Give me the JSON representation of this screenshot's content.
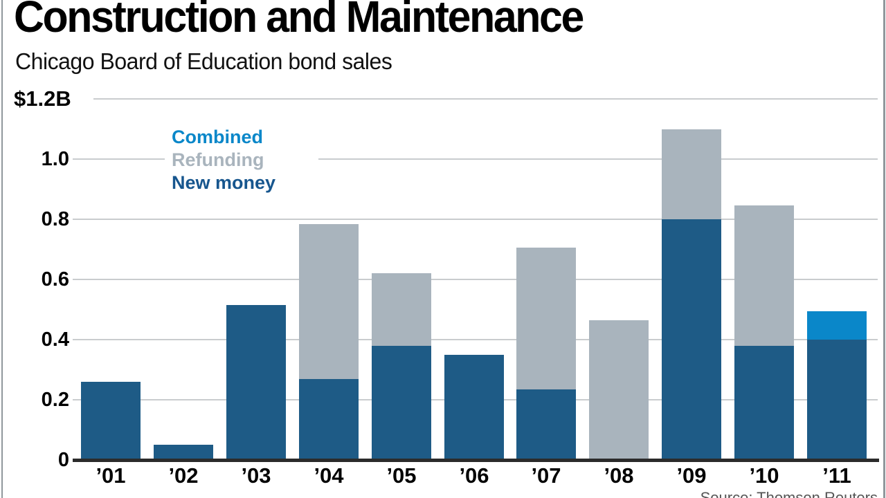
{
  "header": {
    "title": "Construction and Maintenance",
    "subtitle": "Chicago Board of Education bond sales"
  },
  "source": "Source: Thomson Reuters",
  "colors": {
    "combined": "#0a87c9",
    "refunding": "#a9b4bd",
    "new_money": "#1e5b86",
    "legend_new_money_text": "#17568e",
    "gridline": "#c9ccce",
    "baseline": "#2b2b2b"
  },
  "legend": [
    {
      "label": "Combined",
      "color": "#0a87c9"
    },
    {
      "label": "Refunding",
      "color": "#a9b4bd"
    },
    {
      "label": "New money",
      "color": "#17568e"
    }
  ],
  "chart_data": {
    "type": "bar",
    "stacked": true,
    "title": "Construction and Maintenance",
    "subtitle": "Chicago Board of Education bond sales",
    "unit": "billions of dollars",
    "categories": [
      "’01",
      "’02",
      "’03",
      "’04",
      "’05",
      "’06",
      "’07",
      "’08",
      "’09",
      "’10",
      "’11"
    ],
    "series": [
      {
        "name": "New money",
        "color": "#1e5b86",
        "values": [
          0.26,
          0.05,
          0.515,
          0.27,
          0.38,
          0.35,
          0.235,
          0,
          0.8,
          0.38,
          0.4
        ]
      },
      {
        "name": "Refunding",
        "color": "#a9b4bd",
        "values": [
          0,
          0,
          0,
          0.515,
          0.24,
          0,
          0.47,
          0.465,
          0.3,
          0.465,
          0
        ]
      },
      {
        "name": "Combined",
        "color": "#0a87c9",
        "values": [
          0,
          0,
          0,
          0,
          0,
          0,
          0,
          0,
          0,
          0,
          0.095
        ]
      }
    ],
    "totals": [
      0.26,
      0.05,
      0.515,
      0.785,
      0.62,
      0.35,
      0.705,
      0.465,
      1.1,
      0.845,
      0.495
    ],
    "ylim": [
      0,
      1.2
    ],
    "yticks": [
      {
        "value": 0,
        "label": "0"
      },
      {
        "value": 0.2,
        "label": "0.2"
      },
      {
        "value": 0.4,
        "label": "0.4"
      },
      {
        "value": 0.6,
        "label": "0.6"
      },
      {
        "value": 0.8,
        "label": "0.8"
      },
      {
        "value": 1.0,
        "label": "1.0"
      },
      {
        "value": 1.2,
        "label": "$1.2B"
      }
    ],
    "grid": true,
    "legend_position": "upper-left-inside"
  }
}
